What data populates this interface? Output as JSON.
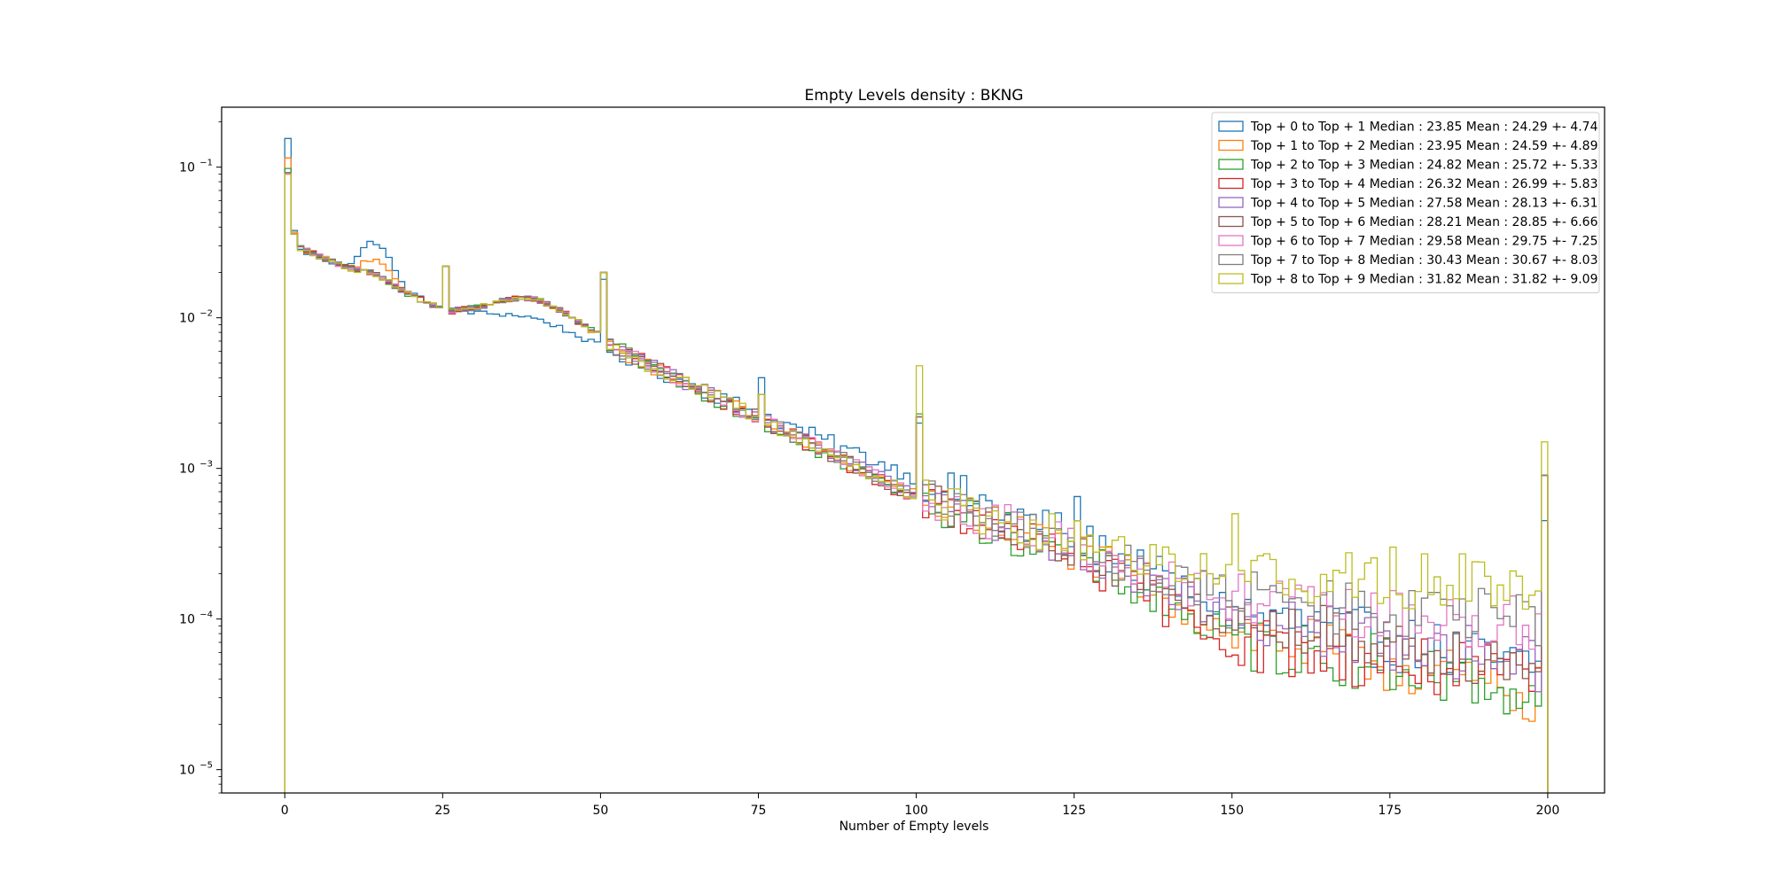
{
  "chart_data": {
    "type": "step-histogram",
    "title": "Empty Levels density : BKNG",
    "xlabel": "Number of Empty levels",
    "ylabel": "",
    "xlim": [
      -10,
      209
    ],
    "ylim": [
      7e-06,
      0.25
    ],
    "yscale": "log",
    "x_ticks": [
      0,
      25,
      50,
      75,
      100,
      125,
      150,
      175,
      200
    ],
    "y_ticks": [
      {
        "value": 1e-05,
        "base": "10",
        "exp": "−5"
      },
      {
        "value": 0.0001,
        "base": "10",
        "exp": "−4"
      },
      {
        "value": 0.001,
        "base": "10",
        "exp": "−3"
      },
      {
        "value": 0.01,
        "base": "10",
        "exp": "−2"
      },
      {
        "value": 0.1,
        "base": "10",
        "exp": "−1"
      }
    ],
    "grid": false,
    "legend_position": "top-right",
    "bins": {
      "start": 0,
      "end": 200,
      "width": 1
    },
    "series": [
      {
        "name": "Top + 0 to Top + 1 Median : 23.85 Mean : 24.29 +- 4.74",
        "color": "#1f77b4",
        "profile": {
          "v0": 0.155,
          "v1": 0.038,
          "b2": 0.028,
          "b25": 0.0115,
          "b50": 0.0062,
          "b100": 0.00085,
          "b125": 0.00034,
          "b150": 0.00011,
          "b175": 7e-05,
          "b199": 4.5e-05
        },
        "spikes": [
          {
            "bin": 25,
            "value": 0.022
          },
          {
            "bin": 50,
            "value": 0.018
          },
          {
            "bin": 75,
            "value": 0.004
          },
          {
            "bin": 100,
            "value": 0.002
          },
          {
            "bin": 125,
            "value": 0.00065
          },
          {
            "bin": 199,
            "value": 0.00045
          }
        ],
        "hump": {
          "center": 14,
          "width": 3,
          "amp": 0.8
        }
      },
      {
        "name": "Top + 1 to Top + 2 Median : 23.95 Mean : 24.59 +- 4.89",
        "color": "#ff7f0e",
        "profile": {
          "v0": 0.115,
          "v1": 0.037,
          "b2": 0.029,
          "b25": 0.0112,
          "b50": 0.0068,
          "b100": 0.00063,
          "b125": 0.00028,
          "b150": 8e-05,
          "b175": 5e-05,
          "b199": 3e-05
        },
        "spikes": [
          {
            "bin": 25,
            "value": 0.022
          },
          {
            "bin": 50,
            "value": 0.02
          },
          {
            "bin": 75,
            "value": 0.0031
          },
          {
            "bin": 100,
            "value": 0.0022
          },
          {
            "bin": 125,
            "value": 0.00045
          },
          {
            "bin": 199,
            "value": 0.0009
          }
        ],
        "hump": {
          "center": 14,
          "width": 3,
          "amp": 0.35
        }
      },
      {
        "name": "Top + 2 to Top + 3 Median : 24.82 Mean : 25.72 +- 5.33",
        "color": "#2ca02c",
        "profile": {
          "v0": 0.098,
          "v1": 0.036,
          "b2": 0.029,
          "b25": 0.0112,
          "b50": 0.0069,
          "b100": 0.0006,
          "b125": 0.00026,
          "b150": 7e-05,
          "b175": 5e-05,
          "b199": 3e-05
        },
        "spikes": [
          {
            "bin": 25,
            "value": 0.022
          },
          {
            "bin": 50,
            "value": 0.02
          },
          {
            "bin": 75,
            "value": 0.0031
          },
          {
            "bin": 100,
            "value": 0.0023
          },
          {
            "bin": 125,
            "value": 0.00045
          },
          {
            "bin": 199,
            "value": 0.0009
          }
        ],
        "hump": {
          "center": 14,
          "width": 3,
          "amp": 0.1
        }
      },
      {
        "name": "Top + 3 to Top + 4 Median : 26.32 Mean : 26.99 +- 5.83",
        "color": "#d62728",
        "profile": {
          "v0": 0.092,
          "v1": 0.036,
          "b2": 0.029,
          "b25": 0.0112,
          "b50": 0.0069,
          "b100": 0.00062,
          "b125": 0.00025,
          "b150": 7e-05,
          "b175": 5e-05,
          "b199": 4e-05
        },
        "spikes": [
          {
            "bin": 25,
            "value": 0.022
          },
          {
            "bin": 50,
            "value": 0.02
          },
          {
            "bin": 75,
            "value": 0.0031
          },
          {
            "bin": 100,
            "value": 0.0022
          },
          {
            "bin": 125,
            "value": 0.00045
          },
          {
            "bin": 199,
            "value": 0.0009
          }
        ],
        "hump": {
          "center": 14,
          "width": 3,
          "amp": 0.1
        }
      },
      {
        "name": "Top + 4 to Top + 5 Median : 27.58 Mean : 28.13 +- 6.31",
        "color": "#9467bd",
        "profile": {
          "v0": 0.092,
          "v1": 0.036,
          "b2": 0.029,
          "b25": 0.0112,
          "b50": 0.0069,
          "b100": 0.00064,
          "b125": 0.00028,
          "b150": 0.0001,
          "b175": 7e-05,
          "b199": 5e-05
        },
        "spikes": [
          {
            "bin": 25,
            "value": 0.022
          },
          {
            "bin": 50,
            "value": 0.02
          },
          {
            "bin": 75,
            "value": 0.0031
          },
          {
            "bin": 100,
            "value": 0.0022
          },
          {
            "bin": 125,
            "value": 0.00045
          },
          {
            "bin": 199,
            "value": 0.0009
          }
        ],
        "hump": {
          "center": 14,
          "width": 3,
          "amp": 0.1
        }
      },
      {
        "name": "Top + 5 to Top + 6 Median : 28.21 Mean : 28.85 +- 6.66",
        "color": "#8c564b",
        "profile": {
          "v0": 0.09,
          "v1": 0.036,
          "b2": 0.029,
          "b25": 0.0112,
          "b50": 0.0069,
          "b100": 0.00064,
          "b125": 0.00028,
          "b150": 0.0001,
          "b175": 7e-05,
          "b199": 5e-05
        },
        "spikes": [
          {
            "bin": 25,
            "value": 0.022
          },
          {
            "bin": 50,
            "value": 0.02
          },
          {
            "bin": 75,
            "value": 0.0031
          },
          {
            "bin": 100,
            "value": 0.0022
          },
          {
            "bin": 125,
            "value": 0.00045
          },
          {
            "bin": 199,
            "value": 0.0009
          }
        ],
        "hump": {
          "center": 14,
          "width": 3,
          "amp": 0.1
        }
      },
      {
        "name": "Top + 6 to Top + 7 Median : 29.58 Mean : 29.75 +- 7.25",
        "color": "#e377c2",
        "profile": {
          "v0": 0.09,
          "v1": 0.036,
          "b2": 0.029,
          "b25": 0.0112,
          "b50": 0.0069,
          "b100": 0.00064,
          "b125": 0.0003,
          "b150": 0.00013,
          "b175": 0.0001,
          "b199": 9e-05
        },
        "spikes": [
          {
            "bin": 25,
            "value": 0.022
          },
          {
            "bin": 50,
            "value": 0.02
          },
          {
            "bin": 75,
            "value": 0.0031
          },
          {
            "bin": 100,
            "value": 0.0022
          },
          {
            "bin": 125,
            "value": 0.00045
          },
          {
            "bin": 199,
            "value": 0.0009
          }
        ],
        "hump": {
          "center": 14,
          "width": 3,
          "amp": 0.1
        }
      },
      {
        "name": "Top + 7 to Top + 8 Median : 30.43 Mean : 30.67 +- 8.03",
        "color": "#7f7f7f",
        "profile": {
          "v0": 0.09,
          "v1": 0.036,
          "b2": 0.029,
          "b25": 0.0112,
          "b50": 0.0069,
          "b100": 0.00064,
          "b125": 0.0003,
          "b150": 0.00014,
          "b175": 0.00011,
          "b199": 0.0001
        },
        "spikes": [
          {
            "bin": 25,
            "value": 0.022
          },
          {
            "bin": 50,
            "value": 0.02
          },
          {
            "bin": 75,
            "value": 0.0031
          },
          {
            "bin": 100,
            "value": 0.0022
          },
          {
            "bin": 125,
            "value": 0.00045
          },
          {
            "bin": 199,
            "value": 0.0009
          }
        ],
        "hump": {
          "center": 14,
          "width": 3,
          "amp": 0.1
        }
      },
      {
        "name": "Top + 8 to Top + 9 Median : 31.82 Mean : 31.82 +- 9.09",
        "color": "#bcbd22",
        "profile": {
          "v0": 0.09,
          "v1": 0.036,
          "b2": 0.029,
          "b25": 0.0112,
          "b50": 0.0069,
          "b100": 0.00064,
          "b125": 0.00033,
          "b150": 0.0002,
          "b175": 0.00018,
          "b199": 0.00017
        },
        "spikes": [
          {
            "bin": 25,
            "value": 0.022
          },
          {
            "bin": 50,
            "value": 0.02
          },
          {
            "bin": 75,
            "value": 0.0031
          },
          {
            "bin": 100,
            "value": 0.0048
          },
          {
            "bin": 125,
            "value": 0.00045
          },
          {
            "bin": 150,
            "value": 0.0005
          },
          {
            "bin": 175,
            "value": 0.0003
          },
          {
            "bin": 199,
            "value": 0.0015
          }
        ],
        "hump": {
          "center": 14,
          "width": 3,
          "amp": 0.1
        }
      }
    ]
  }
}
